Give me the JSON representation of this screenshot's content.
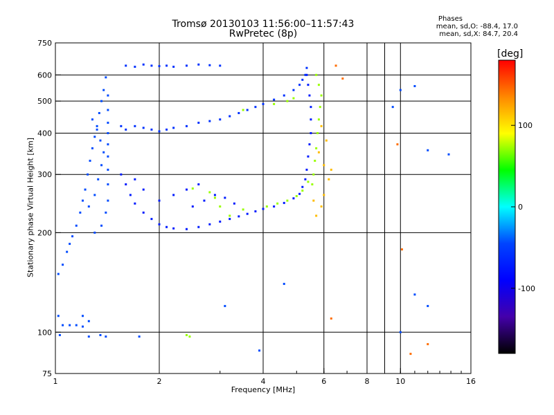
{
  "chart_data": {
    "type": "scatter",
    "title": "Tromsø 20130103 11:56:00–11:57:43",
    "subtitle": "RwPretec (8p)",
    "stats": {
      "heading": "Phases",
      "o_line": "mean, sd,O: -88.4, 17.0",
      "x_line": "mean, sd,X:  84.7, 20.4"
    },
    "xlabel": "Frequency [MHz]",
    "ylabel": "Stationary phase Virtual Height [km]",
    "x_scale": "log",
    "y_scale": "log",
    "xlim": [
      1,
      16
    ],
    "ylim": [
      75,
      750
    ],
    "x_ticks": [
      1,
      2,
      4,
      6,
      8,
      10,
      16
    ],
    "x_tick_labels": [
      "1",
      "2",
      "4",
      "6",
      "8",
      "10",
      "16"
    ],
    "y_ticks": [
      75,
      100,
      200,
      300,
      400,
      500,
      600,
      750
    ],
    "y_tick_labels": [
      "75",
      "100",
      "200",
      "300",
      "400",
      "500",
      "600",
      "750"
    ],
    "grid_x": [
      2,
      4,
      6,
      8,
      9,
      10
    ],
    "grid_y": [
      100,
      200,
      300,
      400,
      500,
      600
    ],
    "grid": true,
    "colorbar": {
      "label": "[deg]",
      "range": [
        -180,
        180
      ],
      "ticks": [
        100,
        0,
        -100
      ],
      "tick_labels": [
        "100",
        "0",
        "-100"
      ],
      "colors": [
        "#ff0000",
        "#ff8800",
        "#ffff00",
        "#00ff00",
        "#00ffff",
        "#0044ff",
        "#0000ff",
        "#4400aa",
        "#000000"
      ]
    },
    "series": [
      {
        "points": [
          [
            1.02,
            150
          ],
          [
            1.05,
            160
          ],
          [
            1.08,
            175
          ],
          [
            1.1,
            185
          ],
          [
            1.12,
            195
          ],
          [
            1.15,
            210
          ],
          [
            1.18,
            230
          ],
          [
            1.2,
            250
          ],
          [
            1.22,
            270
          ],
          [
            1.24,
            300
          ],
          [
            1.26,
            330
          ],
          [
            1.28,
            360
          ],
          [
            1.3,
            390
          ],
          [
            1.32,
            420
          ],
          [
            1.34,
            460
          ],
          [
            1.36,
            500
          ],
          [
            1.38,
            540
          ],
          [
            1.4,
            590
          ],
          [
            1.25,
            240
          ],
          [
            1.3,
            260
          ],
          [
            1.33,
            290
          ],
          [
            1.36,
            320
          ],
          [
            1.38,
            350
          ],
          [
            1.35,
            380
          ],
          [
            1.32,
            410
          ],
          [
            1.28,
            440
          ],
          [
            1.3,
            200
          ],
          [
            1.36,
            210
          ],
          [
            1.4,
            230
          ],
          [
            1.42,
            250
          ],
          [
            1.42,
            280
          ],
          [
            1.42,
            310
          ],
          [
            1.42,
            340
          ],
          [
            1.42,
            370
          ],
          [
            1.42,
            400
          ],
          [
            1.42,
            430
          ],
          [
            1.42,
            470
          ],
          [
            1.42,
            520
          ],
          [
            1.05,
            105
          ],
          [
            1.1,
            105
          ],
          [
            1.15,
            105
          ],
          [
            1.2,
            104
          ],
          [
            1.03,
            98
          ],
          [
            1.25,
            97
          ],
          [
            1.35,
            98
          ],
          [
            1.4,
            97
          ]
        ]
      },
      {
        "points": [
          [
            1.55,
            420
          ],
          [
            1.6,
            410
          ],
          [
            1.7,
            420
          ],
          [
            1.8,
            415
          ],
          [
            1.9,
            410
          ],
          [
            2.0,
            405
          ],
          [
            2.1,
            410
          ],
          [
            2.2,
            415
          ],
          [
            2.4,
            420
          ],
          [
            2.6,
            430
          ],
          [
            2.8,
            435
          ],
          [
            3.0,
            440
          ],
          [
            3.2,
            450
          ],
          [
            3.4,
            460
          ],
          [
            3.6,
            470
          ],
          [
            3.8,
            480
          ],
          [
            4.0,
            490
          ],
          [
            4.3,
            505
          ],
          [
            4.6,
            520
          ],
          [
            4.9,
            540
          ],
          [
            5.1,
            560
          ],
          [
            5.2,
            580
          ],
          [
            5.3,
            600
          ],
          [
            5.35,
            630
          ],
          [
            1.6,
            640
          ],
          [
            1.7,
            635
          ],
          [
            1.8,
            645
          ],
          [
            1.9,
            640
          ],
          [
            2.0,
            638
          ],
          [
            2.1,
            640
          ],
          [
            2.2,
            635
          ],
          [
            2.4,
            640
          ],
          [
            2.6,
            645
          ],
          [
            2.8,
            642
          ],
          [
            3.0,
            640
          ]
        ]
      },
      {
        "points": [
          [
            1.55,
            300
          ],
          [
            1.6,
            280
          ],
          [
            1.65,
            260
          ],
          [
            1.7,
            245
          ],
          [
            1.8,
            230
          ],
          [
            1.9,
            220
          ],
          [
            2.0,
            212
          ],
          [
            2.1,
            208
          ],
          [
            2.2,
            206
          ],
          [
            2.4,
            205
          ],
          [
            2.6,
            208
          ],
          [
            2.8,
            212
          ],
          [
            3.0,
            216
          ],
          [
            3.2,
            220
          ],
          [
            3.4,
            224
          ],
          [
            3.6,
            228
          ],
          [
            3.8,
            232
          ],
          [
            4.0,
            236
          ],
          [
            4.3,
            240
          ],
          [
            4.6,
            246
          ],
          [
            4.9,
            254
          ],
          [
            5.1,
            262
          ],
          [
            5.2,
            275
          ],
          [
            5.3,
            290
          ],
          [
            5.35,
            310
          ],
          [
            5.4,
            340
          ],
          [
            5.45,
            370
          ],
          [
            5.5,
            400
          ],
          [
            5.5,
            440
          ],
          [
            5.5,
            480
          ],
          [
            5.45,
            520
          ],
          [
            5.4,
            560
          ],
          [
            5.35,
            600
          ],
          [
            2.5,
            240
          ],
          [
            2.7,
            250
          ],
          [
            2.9,
            260
          ],
          [
            3.1,
            255
          ],
          [
            3.3,
            245
          ],
          [
            2.4,
            270
          ],
          [
            2.6,
            280
          ],
          [
            2.2,
            260
          ],
          [
            2.0,
            250
          ],
          [
            1.8,
            270
          ],
          [
            1.7,
            290
          ]
        ]
      },
      {
        "points": [
          [
            5.55,
            280
          ],
          [
            5.6,
            300
          ],
          [
            5.65,
            330
          ],
          [
            5.7,
            360
          ],
          [
            5.75,
            400
          ],
          [
            5.8,
            440
          ],
          [
            5.85,
            480
          ],
          [
            5.9,
            520
          ],
          [
            5.8,
            560
          ],
          [
            5.7,
            600
          ],
          [
            4.1,
            240
          ],
          [
            4.4,
            245
          ],
          [
            4.7,
            250
          ],
          [
            5.0,
            258
          ],
          [
            5.2,
            268
          ],
          [
            5.4,
            285
          ],
          [
            3.5,
            235
          ],
          [
            3.2,
            225
          ],
          [
            3.0,
            240
          ],
          [
            2.9,
            255
          ],
          [
            2.8,
            265
          ],
          [
            2.5,
            272
          ],
          [
            3.5,
            470
          ],
          [
            4.3,
            490
          ],
          [
            4.7,
            500
          ],
          [
            4.9,
            510
          ],
          [
            2.4,
            98
          ],
          [
            2.45,
            97
          ]
        ]
      },
      {
        "points": [
          [
            5.7,
            225
          ],
          [
            5.9,
            240
          ],
          [
            6.0,
            260
          ],
          [
            6.2,
            290
          ],
          [
            6.0,
            320
          ],
          [
            5.8,
            350
          ],
          [
            6.1,
            380
          ],
          [
            5.9,
            420
          ],
          [
            6.3,
            310
          ],
          [
            5.6,
            250
          ]
        ]
      },
      {
        "points": [
          [
            6.5,
            640
          ],
          [
            6.3,
            110
          ],
          [
            10.1,
            178
          ],
          [
            10.7,
            86
          ],
          [
            12.0,
            92
          ],
          [
            6.8,
            585
          ],
          [
            9.8,
            370
          ]
        ]
      },
      {
        "points": [
          [
            9.5,
            480
          ],
          [
            10.0,
            540
          ],
          [
            11.0,
            555
          ],
          [
            12.0,
            355
          ],
          [
            13.8,
            345
          ],
          [
            10.0,
            100
          ],
          [
            11.0,
            130
          ],
          [
            12.0,
            120
          ],
          [
            3.1,
            120
          ],
          [
            4.6,
            140
          ],
          [
            3.9,
            88
          ],
          [
            1.75,
            97
          ],
          [
            1.2,
            112
          ],
          [
            1.25,
            108
          ],
          [
            1.02,
            112
          ]
        ]
      }
    ]
  }
}
